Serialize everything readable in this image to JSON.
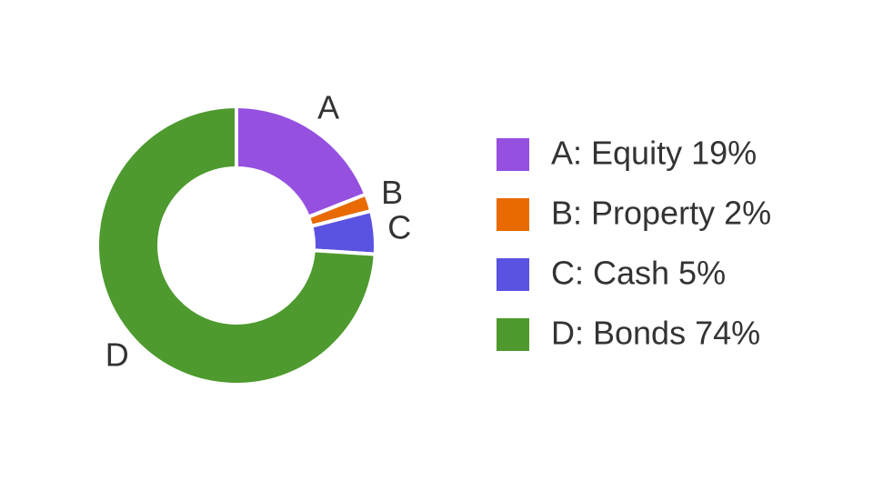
{
  "chart_data": {
    "type": "donut",
    "categories": [
      "A",
      "B",
      "C",
      "D"
    ],
    "values": [
      19,
      2,
      5,
      74
    ],
    "colors": [
      "#9550e0",
      "#e86a00",
      "#5a52e0",
      "#4e9a2e"
    ],
    "legend_labels": [
      "A: Equity 19%",
      "B: Property 2%",
      "C: Cash 5%",
      "D: Bonds 74%"
    ]
  }
}
